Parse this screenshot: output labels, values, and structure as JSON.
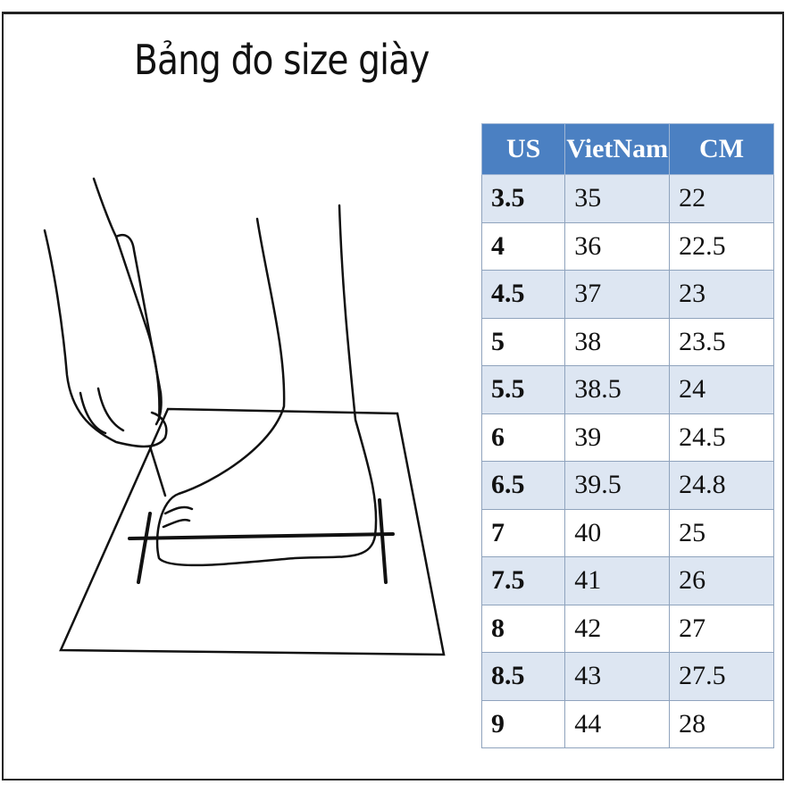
{
  "title": "Bảng đo size giày",
  "table": {
    "headers": [
      "US",
      "VietNam",
      "CM"
    ],
    "header_color": "#4b80c2",
    "alt_row_color": "#dde6f2",
    "rows": [
      [
        "3.5",
        "35",
        "22"
      ],
      [
        "4",
        "36",
        "22.5"
      ],
      [
        "4.5",
        "37",
        "23"
      ],
      [
        "5",
        "38",
        "23.5"
      ],
      [
        "5.5",
        "38.5",
        "24"
      ],
      [
        "6",
        "39",
        "24.5"
      ],
      [
        "6.5",
        "39.5",
        "24.8"
      ],
      [
        "7",
        "40",
        "25"
      ],
      [
        "7.5",
        "41",
        "26"
      ],
      [
        "8",
        "42",
        "27"
      ],
      [
        "8.5",
        "43",
        "27.5"
      ],
      [
        "9",
        "44",
        "28"
      ]
    ]
  },
  "illustration": "foot-measuring-icon"
}
